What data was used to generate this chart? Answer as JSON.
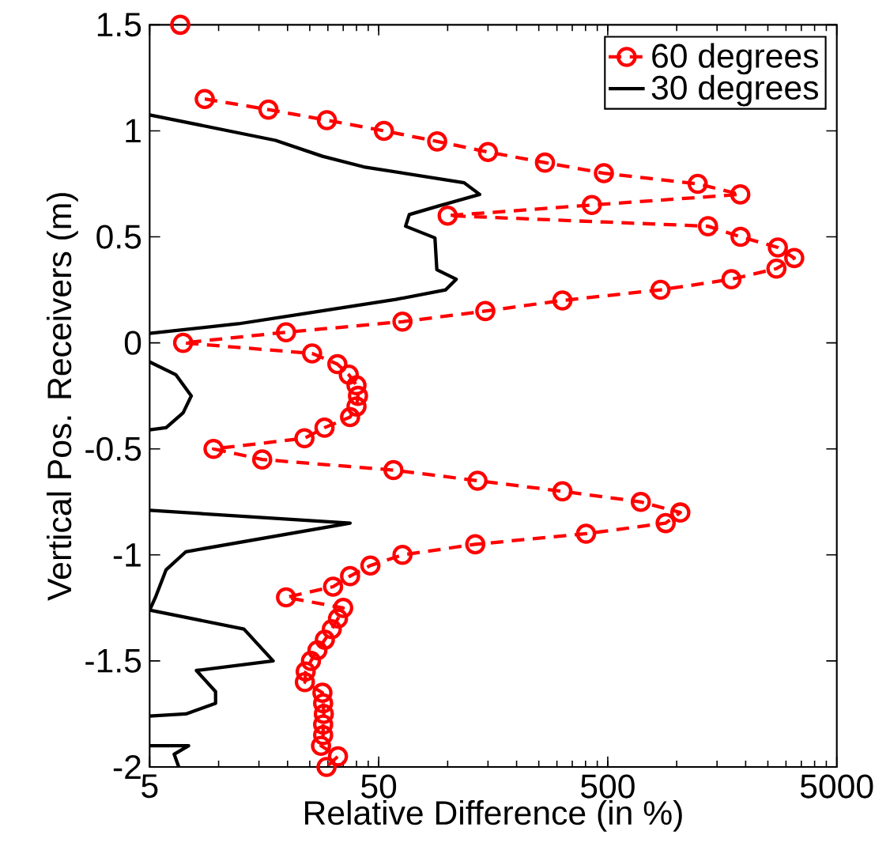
{
  "chart_data": {
    "type": "line",
    "xlabel": "Relative Difference (in %)",
    "ylabel": "Vertical Pos. Receivers (m)",
    "log": "x",
    "xlim": [
      5,
      5000
    ],
    "xticks": [
      5,
      50,
      500,
      5000
    ],
    "ylim": [
      -2,
      1.5
    ],
    "yticks": [
      -2,
      -1.5,
      -1,
      -0.5,
      0,
      0.5,
      1,
      1.5
    ],
    "grid": false,
    "legend": "top right",
    "series": [
      {
        "name": "60 degrees",
        "color": "#ff0000",
        "line_style": "dashed",
        "marker": "circle",
        "x": [
          6.8,
          null,
          8.7,
          16.5,
          29.7,
          52.7,
          90,
          150,
          266,
          481,
          1235,
          1895,
          426,
          100,
          1370,
          1900,
          2765,
          3260,
          2725,
          1734,
          850,
          317,
          146,
          63.5,
          19.7,
          7,
          25.6,
          33,
          37,
          40,
          40.6,
          40,
          37.5,
          29,
          23.7,
          9.5,
          15.5,
          58,
          135,
          317,
          697,
          1037,
          895,
          402,
          132,
          63.5,
          46,
          37.5,
          31.6,
          19.7,
          35,
          33.2,
          31.2,
          29.1,
          27,
          25.3,
          24,
          23.8,
          28.4,
          28.6,
          28.8,
          28.6,
          28.6,
          28,
          33.2,
          29.6
        ],
        "values": [
          1.5,
          null,
          1.15,
          1.1,
          1.05,
          1,
          0.95,
          0.9,
          0.85,
          0.8,
          0.75,
          0.7,
          0.65,
          0.6,
          0.55,
          0.5,
          0.45,
          0.4,
          0.35,
          0.3,
          0.25,
          0.2,
          0.15,
          0.1,
          0.05,
          0,
          -0.05,
          -0.1,
          -0.15,
          -0.2,
          -0.25,
          -0.3,
          -0.35,
          -0.4,
          -0.45,
          -0.5,
          -0.55,
          -0.6,
          -0.65,
          -0.7,
          -0.75,
          -0.8,
          -0.85,
          -0.9,
          -0.95,
          -1,
          -1.05,
          -1.1,
          -1.15,
          -1.2,
          -1.25,
          -1.3,
          -1.35,
          -1.4,
          -1.45,
          -1.5,
          -1.55,
          -1.6,
          -1.65,
          -1.7,
          -1.75,
          -1.8,
          -1.85,
          -1.9,
          -1.95,
          -2
        ]
      },
      {
        "name": "30 degrees",
        "color": "#000000",
        "line_style": "solid",
        "marker": "none",
        "x": [
          5,
          17.7,
          28.4,
          43,
          118,
          138,
          91,
          68,
          65.5,
          88,
          89.7,
          109,
          98,
          59.5,
          24.3,
          12.2,
          5,
          null,
          5,
          6.5,
          7.6,
          7,
          5.9,
          5,
          null,
          5,
          37.5,
          7.2,
          5.9,
          5.3,
          5,
          12.9,
          17.3,
          8,
          9.7,
          9.7,
          7.2,
          5,
          null,
          5,
          7.4,
          6.4,
          6.7
        ],
        "values": [
          1.075,
          0.955,
          0.88,
          0.83,
          0.755,
          0.7,
          0.645,
          0.605,
          0.55,
          0.495,
          0.345,
          0.3,
          0.25,
          0.205,
          0.14,
          0.09,
          0.045,
          null,
          -0.09,
          -0.15,
          -0.25,
          -0.33,
          -0.4,
          -0.41,
          null,
          -0.79,
          -0.85,
          -0.985,
          -1.07,
          -1.2,
          -1.26,
          -1.35,
          -1.5,
          -1.545,
          -1.645,
          -1.7,
          -1.75,
          -1.76,
          null,
          -1.9,
          -1.9,
          -1.94,
          -2
        ]
      }
    ]
  }
}
